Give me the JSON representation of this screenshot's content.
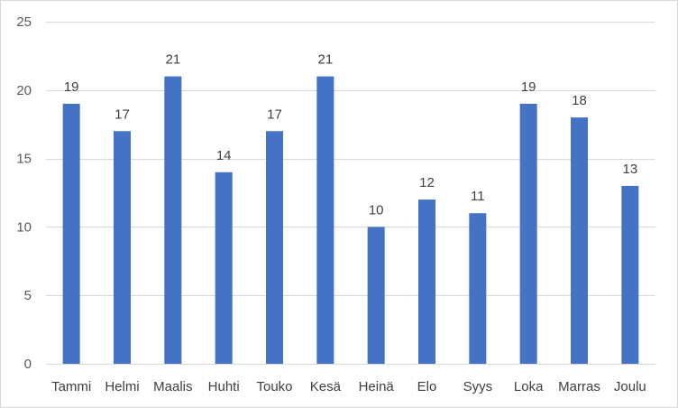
{
  "chart_data": {
    "type": "bar",
    "title": "",
    "xlabel": "",
    "ylabel": "",
    "categories": [
      "Tammi",
      "Helmi",
      "Maalis",
      "Huhti",
      "Touko",
      "Kesä",
      "Heinä",
      "Elo",
      "Syys",
      "Loka",
      "Marras",
      "Joulu"
    ],
    "values": [
      19,
      17,
      21,
      14,
      17,
      21,
      10,
      12,
      11,
      19,
      18,
      13
    ],
    "ylim": [
      0,
      25
    ],
    "yticks": [
      0,
      5,
      10,
      15,
      20,
      25
    ],
    "grid": true,
    "legend": "none",
    "bar_color": "#4472c4",
    "grid_color": "#d9d9d9"
  }
}
